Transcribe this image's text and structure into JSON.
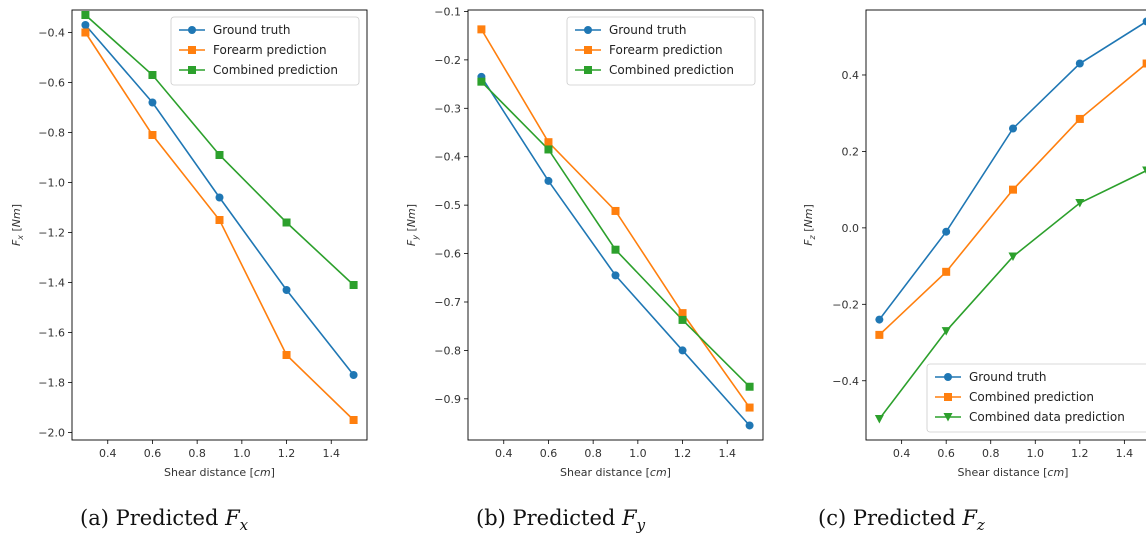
{
  "chart_data": [
    {
      "type": "line",
      "caption": {
        "prefix": "(a) Predicted ",
        "var": "F",
        "sub": "x"
      },
      "xlabel": "Shear distance [cm]",
      "ylabel": "F_x [Nm]",
      "x": [
        0.3,
        0.6,
        0.9,
        1.2,
        1.5
      ],
      "xlim": [
        0.24,
        1.56
      ],
      "ylim": [
        -2.03,
        -0.31
      ],
      "xticks": [
        "0.4",
        "0.6",
        "0.8",
        "1.0",
        "1.2",
        "1.4"
      ],
      "yticks": [
        "-0.4",
        "-0.6",
        "-0.8",
        "-1.0",
        "-1.2",
        "-1.4",
        "-1.6",
        "-1.8",
        "-2.0"
      ],
      "legend_loc": "top-right",
      "series": [
        {
          "name": "Ground truth",
          "color": "#1f77b4",
          "marker": "circle",
          "values": [
            -0.37,
            -0.68,
            -1.06,
            -1.43,
            -1.77
          ]
        },
        {
          "name": "Forearm prediction",
          "color": "#ff7f0e",
          "marker": "square",
          "values": [
            -0.4,
            -0.81,
            -1.15,
            -1.69,
            -1.95
          ]
        },
        {
          "name": "Combined prediction",
          "color": "#2ca02c",
          "marker": "square",
          "values": [
            -0.33,
            -0.57,
            -0.89,
            -1.16,
            -1.41
          ]
        }
      ]
    },
    {
      "type": "line",
      "caption": {
        "prefix": "(b) Predicted ",
        "var": "F",
        "sub": "y"
      },
      "xlabel": "Shear distance [cm]",
      "ylabel": "F_y [Nm]",
      "x": [
        0.3,
        0.6,
        0.9,
        1.2,
        1.5
      ],
      "xlim": [
        0.24,
        1.56
      ],
      "ylim": [
        -0.985,
        -0.097
      ],
      "xticks": [
        "0.4",
        "0.6",
        "0.8",
        "1.0",
        "1.2",
        "1.4"
      ],
      "yticks": [
        "-0.1",
        "-0.2",
        "-0.3",
        "-0.4",
        "-0.5",
        "-0.6",
        "-0.7",
        "-0.8",
        "-0.9"
      ],
      "legend_loc": "top-right",
      "series": [
        {
          "name": "Ground truth",
          "color": "#1f77b4",
          "marker": "circle",
          "values": [
            -0.235,
            -0.45,
            -0.645,
            -0.8,
            -0.955
          ]
        },
        {
          "name": "Forearm prediction",
          "color": "#ff7f0e",
          "marker": "square",
          "values": [
            -0.137,
            -0.37,
            -0.512,
            -0.723,
            -0.918
          ]
        },
        {
          "name": "Combined prediction",
          "color": "#2ca02c",
          "marker": "square",
          "values": [
            -0.245,
            -0.385,
            -0.592,
            -0.737,
            -0.875
          ]
        }
      ]
    },
    {
      "type": "line",
      "caption": {
        "prefix": "(c) Predicted ",
        "var": "F",
        "sub": "z"
      },
      "xlabel": "Shear distance [cm]",
      "ylabel": "F_z [Nm]",
      "x": [
        0.3,
        0.6,
        0.9,
        1.2,
        1.5
      ],
      "xlim": [
        0.24,
        1.56
      ],
      "ylim": [
        -0.555,
        0.57
      ],
      "xticks": [
        "0.4",
        "0.6",
        "0.8",
        "1.0",
        "1.2",
        "1.4"
      ],
      "yticks": [
        "0.4",
        "0.2",
        "0.0",
        "-0.2",
        "-0.4"
      ],
      "legend_loc": "bottom-right",
      "series": [
        {
          "name": "Ground truth",
          "color": "#1f77b4",
          "marker": "circle",
          "values": [
            -0.24,
            -0.01,
            0.26,
            0.43,
            0.54
          ]
        },
        {
          "name": "Combined prediction",
          "color": "#ff7f0e",
          "marker": "square",
          "values": [
            -0.28,
            -0.115,
            0.1,
            0.285,
            0.43
          ]
        },
        {
          "name": "Combined data prediction",
          "color": "#2ca02c",
          "marker": "triangle-down",
          "values": [
            -0.5,
            -0.27,
            -0.075,
            0.065,
            0.15
          ]
        }
      ]
    }
  ]
}
